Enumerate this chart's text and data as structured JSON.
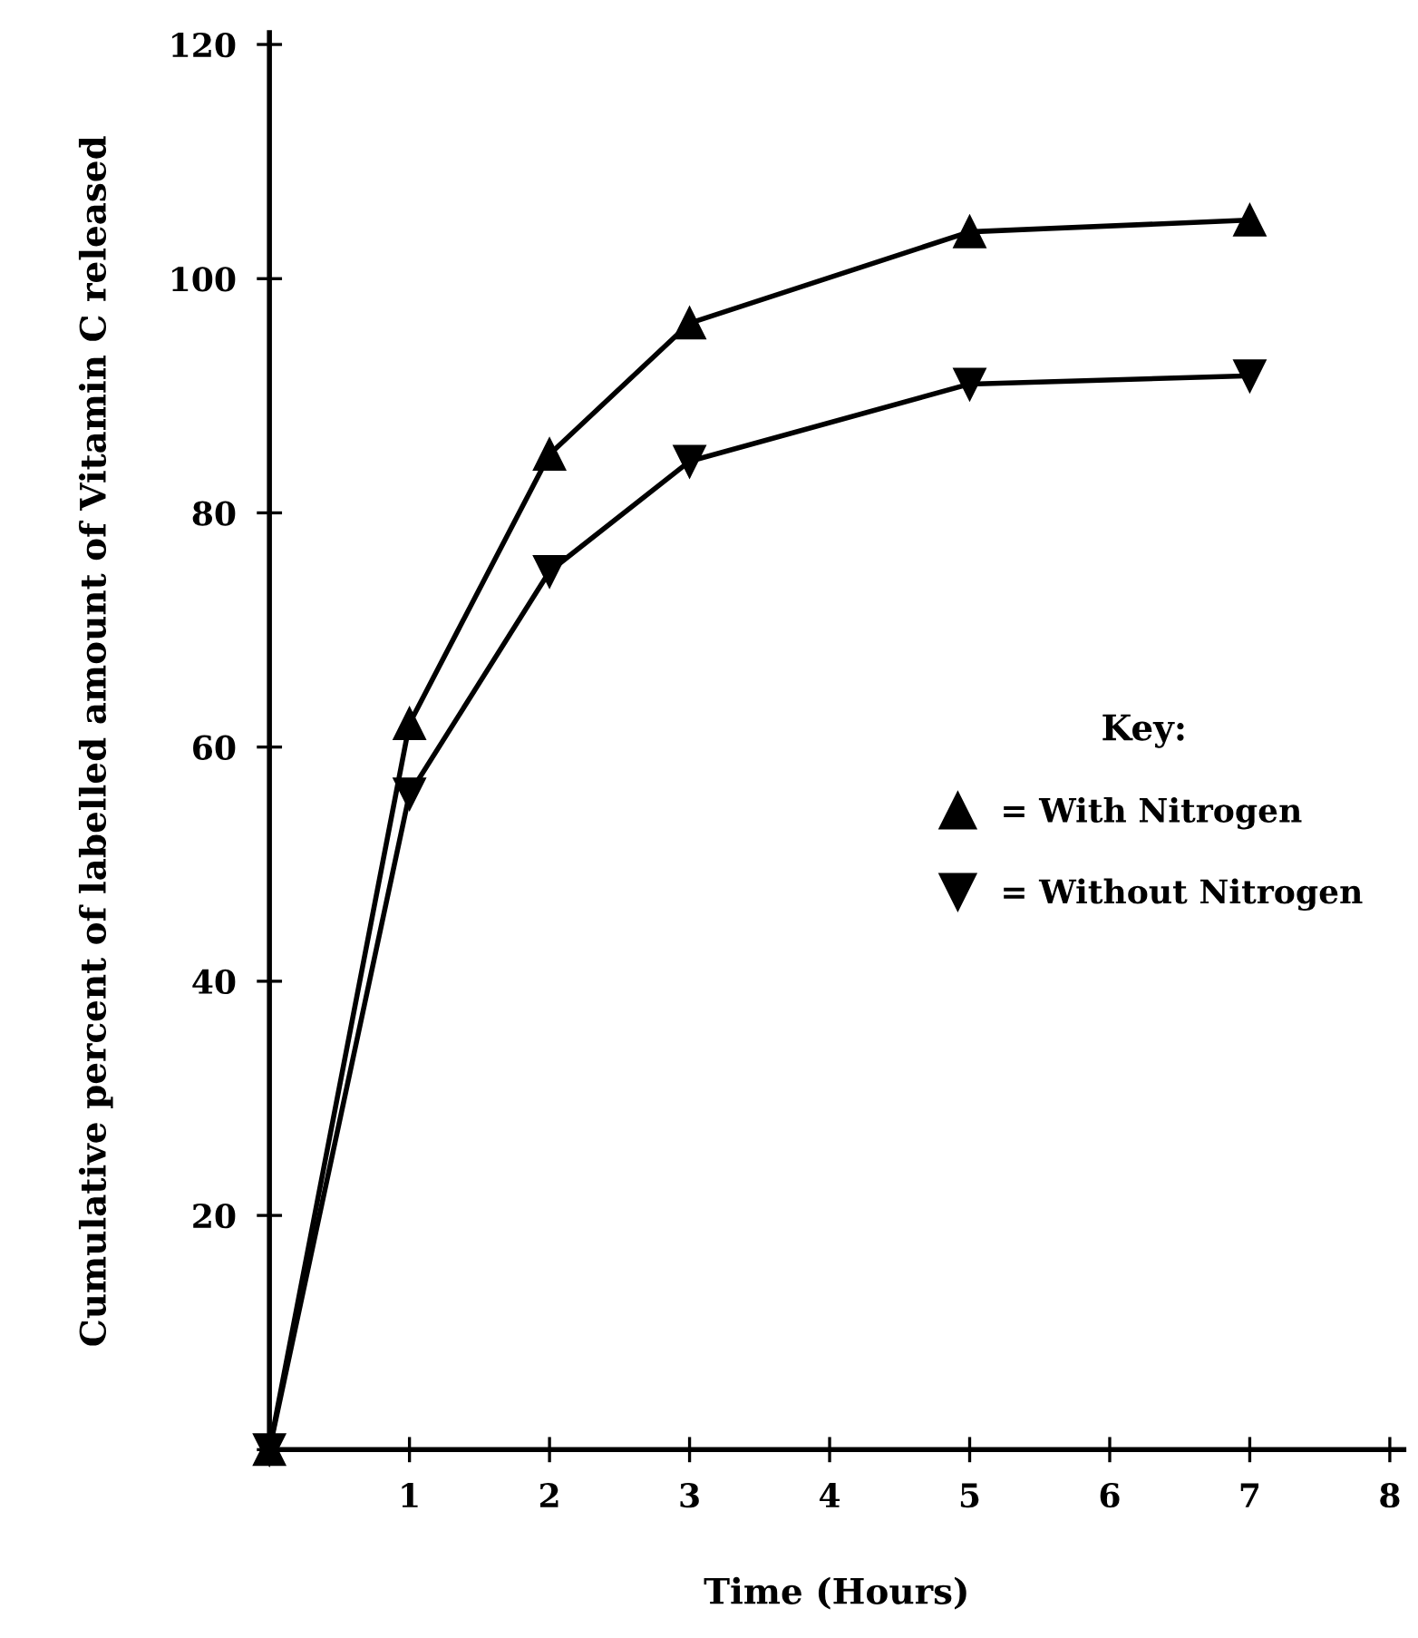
{
  "chart_data": {
    "type": "line",
    "xlabel": "Time (Hours)",
    "ylabel": "Cumulative percent of labelled amount of Vitamin C released",
    "legend_title": "Key:",
    "x": [
      0,
      1,
      2,
      3,
      5,
      7
    ],
    "series": [
      {
        "name": "= With Nitrogen",
        "color": "#000000",
        "marker": "triangle",
        "values": [
          0,
          62,
          85,
          96.2,
          104,
          105
        ]
      },
      {
        "name": "= Without Nitrogen",
        "color": "#000000",
        "marker": "triangle_down",
        "values": [
          0,
          56,
          75,
          84.4,
          91,
          91.7
        ]
      }
    ],
    "xlim": [
      0,
      8.1
    ],
    "ylim": [
      0,
      121
    ],
    "xticks": [
      {
        "value": 0,
        "label": null
      },
      1,
      2,
      3,
      4,
      5,
      6,
      7,
      8
    ],
    "yticks": [
      {
        "value": 0,
        "label": null
      },
      20,
      40,
      60,
      80,
      100,
      120
    ],
    "grid": false,
    "legend": "center right",
    "line_style": "solid"
  }
}
